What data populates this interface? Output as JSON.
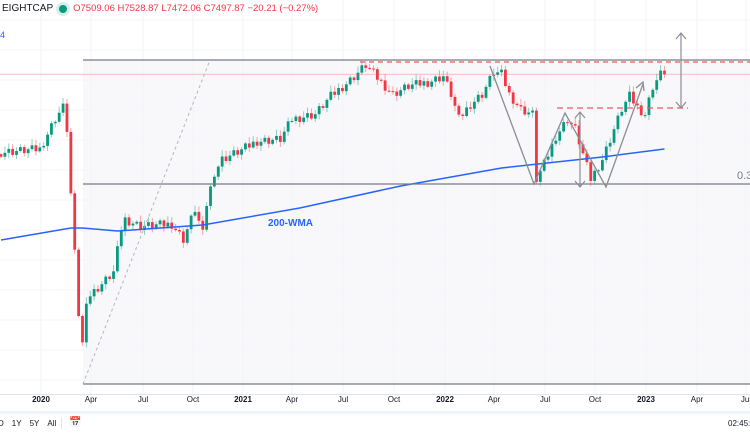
{
  "header": {
    "symbol": "EIGHTCAP",
    "open": "O7509.06",
    "high": "H7528.87",
    "low": "L7472.06",
    "close": "C7497.87",
    "change": "−20.21 (−0.27%)",
    "scale_label": "4"
  },
  "annotations": {
    "wma_label": "200-WMA",
    "fib_label": "0.3"
  },
  "colors": {
    "up": "#089981",
    "down": "#f23645",
    "wma": "#2962ff",
    "line": "#787b86",
    "dash": "#f05a5a"
  },
  "chart_data": {
    "type": "candlestick",
    "interval": "weekly",
    "close_keypoints": [
      [
        0,
        6720
      ],
      [
        10,
        6750
      ],
      [
        14,
        7060
      ],
      [
        16,
        7170
      ],
      [
        17,
        6950
      ],
      [
        18,
        6300
      ],
      [
        19,
        5700
      ],
      [
        20,
        5100
      ],
      [
        21,
        4800
      ],
      [
        22,
        5250
      ],
      [
        26,
        5400
      ],
      [
        29,
        5520
      ],
      [
        31,
        5950
      ],
      [
        32,
        6050
      ],
      [
        36,
        5980
      ],
      [
        44,
        6000
      ],
      [
        47,
        5850
      ],
      [
        50,
        6150
      ],
      [
        52,
        5900
      ],
      [
        53,
        6200
      ],
      [
        55,
        6520
      ],
      [
        57,
        6650
      ],
      [
        62,
        6740
      ],
      [
        66,
        6830
      ],
      [
        72,
        6850
      ],
      [
        75,
        7050
      ],
      [
        81,
        7100
      ],
      [
        85,
        7280
      ],
      [
        90,
        7440
      ],
      [
        94,
        7590
      ],
      [
        98,
        7420
      ],
      [
        101,
        7300
      ],
      [
        105,
        7380
      ],
      [
        110,
        7420
      ],
      [
        114,
        7480
      ],
      [
        116,
        7300
      ],
      [
        118,
        7050
      ],
      [
        121,
        7200
      ],
      [
        124,
        7300
      ],
      [
        127,
        7520
      ],
      [
        129,
        7500
      ],
      [
        131,
        7300
      ],
      [
        134,
        7150
      ],
      [
        137,
        7100
      ],
      [
        138,
        6450
      ],
      [
        140,
        6600
      ],
      [
        143,
        6880
      ],
      [
        146,
        7050
      ],
      [
        148,
        6950
      ],
      [
        150,
        6700
      ],
      [
        152,
        6450
      ],
      [
        155,
        6650
      ],
      [
        157,
        6850
      ],
      [
        160,
        7150
      ],
      [
        162,
        7280
      ],
      [
        164,
        7170
      ],
      [
        166,
        7100
      ],
      [
        168,
        7380
      ],
      [
        170,
        7500
      ],
      [
        171,
        7498
      ]
    ],
    "wma_200": [
      [
        0,
        5842
      ],
      [
        18,
        5962
      ],
      [
        21,
        5962
      ],
      [
        30,
        5932
      ],
      [
        52,
        5992
      ],
      [
        77,
        6162
      ],
      [
        103,
        6382
      ],
      [
        129,
        6562
      ],
      [
        155,
        6672
      ],
      [
        171,
        6752
      ]
    ],
    "levels": {
      "resistance": 7642,
      "resistance_dashed": 7622,
      "last_price": 7500,
      "neckline": 7162,
      "fib_level": 6402,
      "covid_low": 4402
    },
    "x_ticks": [
      "2020",
      "Apr",
      "Jul",
      "Oct",
      "2021",
      "Apr",
      "Jul",
      "Oct",
      "2022",
      "Apr",
      "Jul",
      "Oct",
      "2023",
      "Apr",
      "Jul"
    ]
  },
  "bottom": {
    "ranges": [
      "D",
      "1Y",
      "5Y",
      "All"
    ],
    "time": "02:45:"
  }
}
